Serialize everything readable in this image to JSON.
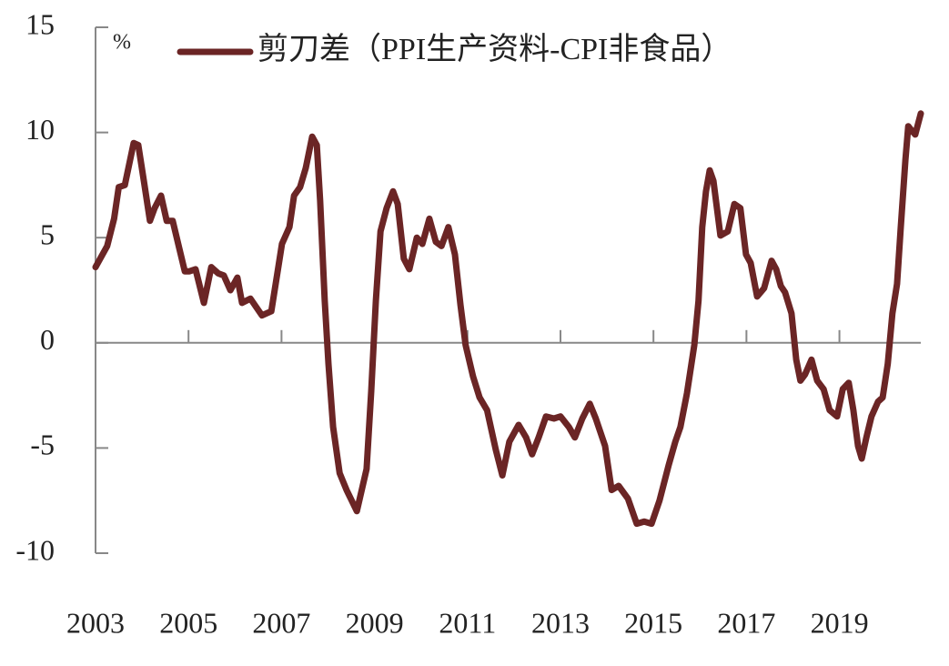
{
  "chart_data": {
    "type": "line",
    "y_label": "%",
    "x": [
      2003.0,
      2003.25,
      2003.4,
      2003.5,
      2003.63,
      2003.82,
      2003.92,
      2004.04,
      2004.17,
      2004.27,
      2004.41,
      2004.53,
      2004.66,
      2004.8,
      2004.92,
      2005.02,
      2005.15,
      2005.33,
      2005.49,
      2005.64,
      2005.76,
      2005.9,
      2006.05,
      2006.15,
      2006.33,
      2006.58,
      2006.78,
      2006.91,
      2007.01,
      2007.17,
      2007.27,
      2007.4,
      2007.52,
      2007.66,
      2007.76,
      2007.83,
      2007.93,
      2008.01,
      2008.11,
      2008.25,
      2008.4,
      2008.62,
      2008.83,
      2008.93,
      2009.03,
      2009.13,
      2009.26,
      2009.4,
      2009.5,
      2009.63,
      2009.75,
      2009.91,
      2010.03,
      2010.18,
      2010.32,
      2010.44,
      2010.59,
      2010.73,
      2010.85,
      2010.96,
      2011.12,
      2011.26,
      2011.42,
      2011.61,
      2011.75,
      2011.9,
      2012.1,
      2012.26,
      2012.39,
      2012.53,
      2012.69,
      2012.86,
      2013.0,
      2013.18,
      2013.31,
      2013.47,
      2013.63,
      2013.76,
      2013.96,
      2014.1,
      2014.25,
      2014.45,
      2014.64,
      2014.8,
      2014.96,
      2015.13,
      2015.33,
      2015.47,
      2015.58,
      2015.72,
      2015.88,
      2015.97,
      2016.05,
      2016.13,
      2016.21,
      2016.29,
      2016.44,
      2016.6,
      2016.74,
      2016.87,
      2016.99,
      2017.09,
      2017.23,
      2017.38,
      2017.54,
      2017.64,
      2017.74,
      2017.83,
      2017.97,
      2018.07,
      2018.16,
      2018.26,
      2018.4,
      2018.52,
      2018.66,
      2018.79,
      2018.95,
      2019.07,
      2019.2,
      2019.3,
      2019.4,
      2019.48,
      2019.58,
      2019.69,
      2019.83,
      2019.93,
      2020.04,
      2020.14,
      2020.24,
      2020.32,
      2020.42,
      2020.48,
      2020.55,
      2020.63,
      2020.75
    ],
    "series": [
      {
        "name": "剪刀差（PPI生产资料-CPI非食品）",
        "color": "#6b2525",
        "values": [
          3.6,
          4.6,
          5.9,
          7.4,
          7.5,
          9.5,
          9.4,
          7.7,
          5.8,
          6.4,
          7.0,
          5.8,
          5.8,
          4.5,
          3.4,
          3.4,
          3.5,
          1.9,
          3.6,
          3.3,
          3.2,
          2.5,
          3.1,
          1.9,
          2.1,
          1.3,
          1.5,
          3.3,
          4.7,
          5.5,
          7.0,
          7.4,
          8.3,
          9.8,
          9.4,
          6.8,
          2.0,
          -1.0,
          -4.0,
          -6.2,
          -7.0,
          -8.0,
          -6.0,
          -2.3,
          2.0,
          5.3,
          6.4,
          7.2,
          6.6,
          4.0,
          3.5,
          5.0,
          4.7,
          5.9,
          4.8,
          4.6,
          5.5,
          4.2,
          1.8,
          -0.1,
          -1.6,
          -2.6,
          -3.2,
          -5.1,
          -6.3,
          -4.7,
          -3.9,
          -4.5,
          -5.3,
          -4.5,
          -3.5,
          -3.6,
          -3.5,
          -4.0,
          -4.5,
          -3.6,
          -2.9,
          -3.6,
          -4.9,
          -7.0,
          -6.8,
          -7.4,
          -8.6,
          -8.5,
          -8.6,
          -7.5,
          -5.8,
          -4.7,
          -4.0,
          -2.4,
          -0.1,
          2.0,
          5.5,
          7.2,
          8.2,
          7.7,
          5.1,
          5.3,
          6.6,
          6.4,
          4.2,
          3.8,
          2.2,
          2.6,
          3.9,
          3.5,
          2.7,
          2.4,
          1.4,
          -0.8,
          -1.8,
          -1.5,
          -0.8,
          -1.8,
          -2.2,
          -3.2,
          -3.5,
          -2.2,
          -1.9,
          -3.2,
          -4.9,
          -5.5,
          -4.5,
          -3.5,
          -2.8,
          -2.6,
          -1.0,
          1.4,
          2.8,
          5.5,
          8.7,
          10.3,
          10.1,
          9.9,
          10.9
        ]
      }
    ],
    "xlim": [
      2003,
      2020.75
    ],
    "xticks": [
      2003,
      2005,
      2007,
      2009,
      2011,
      2013,
      2015,
      2017,
      2019
    ],
    "ylim": [
      -10,
      15
    ],
    "yticks": [
      -10,
      -5,
      0,
      5,
      10,
      15
    ],
    "legend": "top",
    "grid": false
  }
}
